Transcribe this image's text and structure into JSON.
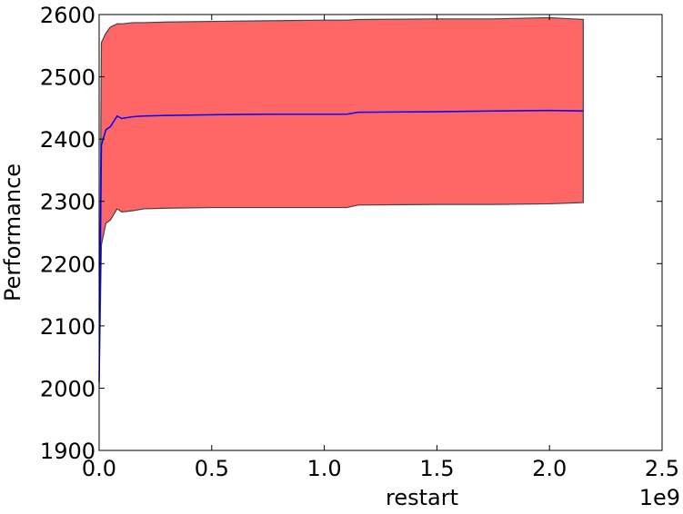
{
  "chart_data": {
    "type": "band-line",
    "x_label": "restart",
    "y_label": "Performance",
    "x_offset_label": "1e9",
    "x": [
      0,
      0.01,
      0.03,
      0.05,
      0.08,
      0.1,
      0.15,
      0.2,
      0.3,
      0.5,
      0.75,
      1.0,
      1.1,
      1.15,
      1.5,
      1.75,
      2.0,
      2.15
    ],
    "series": [
      {
        "color": "#0000ff",
        "values": [
          2010,
          2390,
          2415,
          2420,
          2437,
          2433,
          2436,
          2437,
          2438,
          2439,
          2440,
          2440,
          2440,
          2443,
          2444,
          2445,
          2446,
          2445
        ]
      }
    ],
    "band": {
      "color": "#ff6666",
      "edge_color": "#444444",
      "upper": [
        2000,
        2555,
        2570,
        2580,
        2585,
        2585,
        2587,
        2587,
        2588,
        2589,
        2590,
        2591,
        2591,
        2592,
        2593,
        2593,
        2595,
        2592
      ],
      "lower": [
        2000,
        2230,
        2265,
        2270,
        2288,
        2283,
        2285,
        2288,
        2289,
        2290,
        2290,
        2290,
        2290,
        2294,
        2295,
        2295,
        2296,
        2298
      ]
    },
    "xlim": [
      0,
      2.5
    ],
    "xticks": [
      {
        "value": 0,
        "label": "0.0"
      },
      {
        "value": 0.5,
        "label": "0.5"
      },
      {
        "value": 1,
        "label": "1.0"
      },
      {
        "value": 1.5,
        "label": "1.5"
      },
      {
        "value": 2,
        "label": "2.0"
      },
      {
        "value": 2.5,
        "label": "2.5"
      }
    ],
    "ylim": [
      1900,
      2600
    ],
    "yticks": [
      1900,
      2000,
      2100,
      2200,
      2300,
      2400,
      2500,
      2600
    ]
  }
}
